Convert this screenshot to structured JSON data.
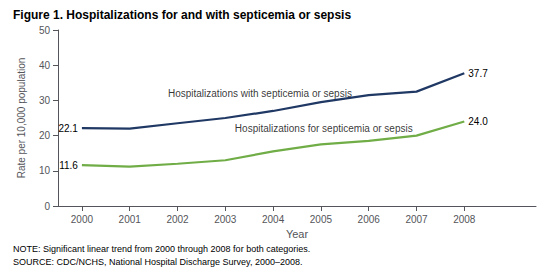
{
  "chart_data": {
    "type": "line",
    "title": "Figure 1. Hospitalizations for and with septicemia or sepsis",
    "x": [
      2000,
      2001,
      2002,
      2003,
      2004,
      2005,
      2006,
      2007,
      2008
    ],
    "series": [
      {
        "color": "#1f3864",
        "values": [
          22.1,
          22.0,
          23.5,
          25.0,
          27.0,
          29.5,
          31.5,
          32.5,
          37.7
        ],
        "value_labels": [
          "22.1",
          null,
          null,
          null,
          null,
          null,
          null,
          null,
          "37.7"
        ]
      },
      {
        "color": "#70ad47",
        "values": [
          11.6,
          11.2,
          12.0,
          13.0,
          15.5,
          17.5,
          18.5,
          20.0,
          24.0
        ],
        "value_labels": [
          "11.6",
          null,
          null,
          null,
          null,
          null,
          null,
          null,
          "24.0"
        ]
      }
    ],
    "xlabel": "Year",
    "ylabel": "Rate per 10,000 population",
    "xlim": [
      1999.5,
      2009.5
    ],
    "xticks": [
      2000,
      2001,
      2002,
      2003,
      2004,
      2005,
      2006,
      2007,
      2008
    ],
    "ylim": [
      0,
      50
    ],
    "yticks": [
      0,
      10,
      20,
      30,
      40,
      50
    ],
    "grid": false,
    "data_labels": true,
    "annotations": [
      {
        "text": "Hospitalizations with septicemia or sepsis",
        "x": 2001.8,
        "y": 30.5
      },
      {
        "text": "Hospitalizations for septicemia or sepsis",
        "x": 2003.2,
        "y": 20.5
      }
    ],
    "note": "NOTE: Significant linear trend from 2000 through 2008 for both categories.",
    "source": "SOURCE: CDC/NCHS, National Hospital Discharge Survey, 2000–2008."
  }
}
